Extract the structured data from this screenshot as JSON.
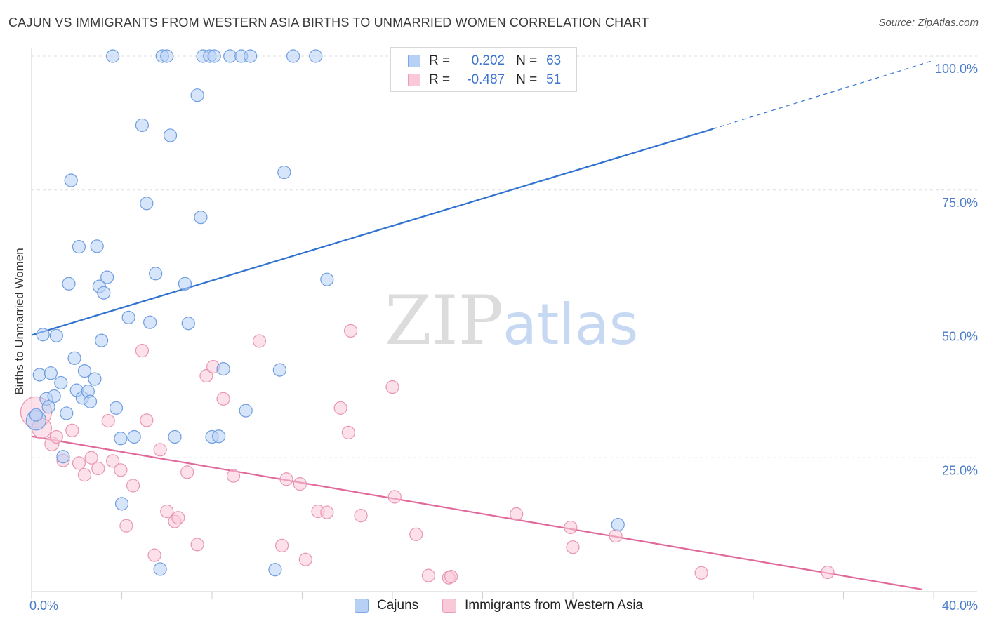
{
  "title": "CAJUN VS IMMIGRANTS FROM WESTERN ASIA BIRTHS TO UNMARRIED WOMEN CORRELATION CHART",
  "source": "Source: ZipAtlas.com",
  "watermark": {
    "zip": "ZIP",
    "atlas": "atlas"
  },
  "legend": {
    "r_label": "R =",
    "n_label": "N =",
    "rows": [
      {
        "r": "0.202",
        "n": "63"
      },
      {
        "r": "-0.487",
        "n": "51"
      }
    ]
  },
  "colors": {
    "blue_fill": "#b7d0f5",
    "blue_stroke": "#6f9de0",
    "blue_line": "#2f72d0",
    "pink_fill": "#f9c9d8",
    "pink_stroke": "#e995b2",
    "pink_line": "#e0689a",
    "grid": "#dddddd",
    "tick_text": "#4a7cc9"
  },
  "chart_data": {
    "type": "scatter",
    "title": "CAJUN VS IMMIGRANTS FROM WESTERN ASIA BIRTHS TO UNMARRIED WOMEN CORRELATION CHART",
    "xlabel": "",
    "ylabel": "Births to Unmarried Women",
    "xlim": [
      0,
      40
    ],
    "ylim": [
      0,
      100
    ],
    "x_tick_labels": [
      "0.0%",
      "40.0%"
    ],
    "y_tick_labels": [
      "25.0%",
      "50.0%",
      "75.0%",
      "100.0%"
    ],
    "y_ticks": [
      25,
      50,
      75,
      100
    ],
    "grid": true,
    "legend_position": "bottom",
    "series": [
      {
        "name": "Cajuns",
        "r": 0.202,
        "n": 63,
        "trend": {
          "x0": 0,
          "y0": 47.9,
          "x1": 30.2,
          "y1": 86.4,
          "dashed_to_x": 40,
          "dashed_to_y": 99.2
        },
        "points": [
          [
            0.2,
            32.0,
            14
          ],
          [
            0.35,
            40.5,
            9
          ],
          [
            0.5,
            48.0,
            9
          ],
          [
            0.65,
            36.0,
            9
          ],
          [
            0.75,
            34.5,
            9
          ],
          [
            0.85,
            40.8,
            9
          ],
          [
            1.0,
            36.5,
            9
          ],
          [
            1.1,
            47.8,
            9
          ],
          [
            1.3,
            39.0,
            9
          ],
          [
            1.4,
            25.2,
            9
          ],
          [
            1.55,
            33.3,
            9
          ],
          [
            1.65,
            57.5,
            9
          ],
          [
            1.75,
            76.8,
            9
          ],
          [
            1.9,
            43.6,
            9
          ],
          [
            2.0,
            37.6,
            9
          ],
          [
            2.1,
            64.4,
            9
          ],
          [
            2.25,
            36.2,
            9
          ],
          [
            2.35,
            41.2,
            9
          ],
          [
            2.5,
            37.4,
            9
          ],
          [
            2.6,
            35.5,
            9
          ],
          [
            2.8,
            39.7,
            9
          ],
          [
            2.9,
            64.5,
            9
          ],
          [
            3.0,
            57.0,
            9
          ],
          [
            3.1,
            46.9,
            9
          ],
          [
            3.2,
            55.8,
            9
          ],
          [
            3.35,
            58.7,
            9
          ],
          [
            3.6,
            100.0,
            9
          ],
          [
            3.75,
            34.3,
            9
          ],
          [
            3.95,
            28.6,
            9
          ],
          [
            4.0,
            16.4,
            9
          ],
          [
            4.3,
            51.2,
            9
          ],
          [
            4.55,
            28.9,
            9
          ],
          [
            4.9,
            87.1,
            9
          ],
          [
            5.1,
            72.5,
            9
          ],
          [
            5.25,
            50.3,
            9
          ],
          [
            5.5,
            59.4,
            9
          ],
          [
            5.7,
            4.2,
            9
          ],
          [
            5.8,
            100.0,
            9
          ],
          [
            6.0,
            100.0,
            9
          ],
          [
            6.15,
            85.2,
            9
          ],
          [
            6.35,
            28.9,
            9
          ],
          [
            6.8,
            57.5,
            9
          ],
          [
            6.95,
            50.1,
            9
          ],
          [
            7.35,
            92.7,
            9
          ],
          [
            7.5,
            69.9,
            9
          ],
          [
            7.6,
            100.0,
            9
          ],
          [
            7.9,
            100.0,
            9
          ],
          [
            8.1,
            100.0,
            9
          ],
          [
            8.0,
            28.9,
            9
          ],
          [
            8.3,
            29.0,
            9
          ],
          [
            8.5,
            41.6,
            9
          ],
          [
            8.8,
            100.0,
            9
          ],
          [
            9.3,
            100.0,
            9
          ],
          [
            9.5,
            33.8,
            9
          ],
          [
            9.7,
            100.0,
            9
          ],
          [
            10.8,
            4.1,
            9
          ],
          [
            11.0,
            41.4,
            9
          ],
          [
            11.2,
            78.3,
            9
          ],
          [
            11.6,
            100.0,
            9
          ],
          [
            12.6,
            100.0,
            9
          ],
          [
            13.1,
            58.3,
            9
          ],
          [
            26.0,
            12.5,
            9
          ],
          [
            0.2,
            33.0,
            9
          ]
        ]
      },
      {
        "name": "Immigrants from Western Asia",
        "r": -0.487,
        "n": 51,
        "trend": {
          "x0": 0,
          "y0": 29.0,
          "x1": 39.5,
          "y1": 0.4
        },
        "points": [
          [
            0.2,
            33.5,
            22
          ],
          [
            0.45,
            30.5,
            14
          ],
          [
            0.9,
            27.6,
            10
          ],
          [
            1.1,
            28.9,
            9
          ],
          [
            1.4,
            24.5,
            9
          ],
          [
            1.8,
            30.1,
            9
          ],
          [
            2.1,
            24.0,
            9
          ],
          [
            2.35,
            21.8,
            9
          ],
          [
            2.65,
            25.0,
            9
          ],
          [
            2.95,
            23.0,
            9
          ],
          [
            3.4,
            31.9,
            9
          ],
          [
            3.6,
            24.4,
            9
          ],
          [
            3.95,
            22.7,
            9
          ],
          [
            4.2,
            12.3,
            9
          ],
          [
            4.5,
            19.8,
            9
          ],
          [
            4.9,
            45.0,
            9
          ],
          [
            5.1,
            32.0,
            9
          ],
          [
            5.45,
            6.8,
            9
          ],
          [
            5.7,
            26.5,
            9
          ],
          [
            6.0,
            15.0,
            9
          ],
          [
            6.35,
            13.1,
            9
          ],
          [
            6.5,
            13.8,
            9
          ],
          [
            6.9,
            22.3,
            9
          ],
          [
            7.35,
            8.8,
            9
          ],
          [
            7.75,
            40.3,
            9
          ],
          [
            8.05,
            42.0,
            9
          ],
          [
            8.5,
            36.0,
            9
          ],
          [
            8.95,
            21.6,
            9
          ],
          [
            10.1,
            46.8,
            9
          ],
          [
            11.1,
            8.6,
            9
          ],
          [
            11.3,
            21.0,
            9
          ],
          [
            11.9,
            20.1,
            9
          ],
          [
            12.15,
            6.0,
            9
          ],
          [
            12.7,
            15.0,
            9
          ],
          [
            13.1,
            14.8,
            9
          ],
          [
            13.7,
            34.3,
            9
          ],
          [
            14.05,
            29.7,
            9
          ],
          [
            14.15,
            48.7,
            9
          ],
          [
            14.6,
            14.2,
            9
          ],
          [
            16.0,
            38.2,
            9
          ],
          [
            16.1,
            17.7,
            9
          ],
          [
            17.05,
            10.7,
            9
          ],
          [
            17.6,
            3.0,
            9
          ],
          [
            18.5,
            2.6,
            9
          ],
          [
            18.6,
            2.8,
            9
          ],
          [
            21.5,
            14.5,
            9
          ],
          [
            23.9,
            12.0,
            9
          ],
          [
            24.0,
            8.3,
            9
          ],
          [
            25.9,
            10.4,
            9
          ],
          [
            29.7,
            3.5,
            9
          ],
          [
            35.3,
            3.6,
            9
          ]
        ]
      }
    ]
  }
}
